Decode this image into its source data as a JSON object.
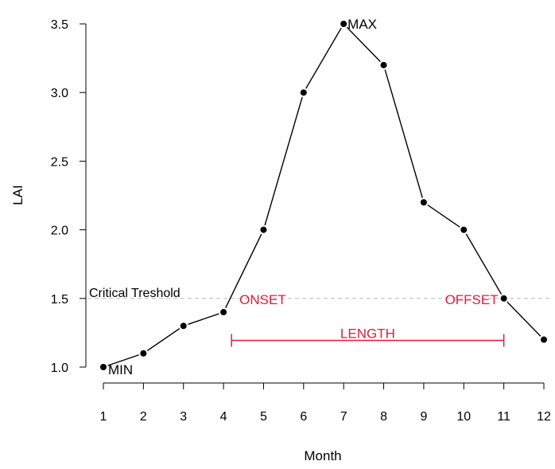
{
  "chart_data": {
    "type": "line",
    "xlabel": "Month",
    "ylabel": "LAI",
    "xlim": [
      1,
      12
    ],
    "ylim": [
      1.0,
      3.5
    ],
    "x_ticks": [
      1,
      2,
      3,
      4,
      5,
      6,
      7,
      8,
      9,
      10,
      11,
      12
    ],
    "y_ticks": [
      "1.0",
      "1.5",
      "2.0",
      "2.5",
      "3.0",
      "3.5"
    ],
    "grid": false,
    "legend": "none",
    "series": [
      {
        "x": [
          1,
          2,
          3,
          4,
          5,
          6,
          7,
          8,
          9,
          10,
          11,
          12
        ],
        "values": [
          1.0,
          1.1,
          1.3,
          1.4,
          2.0,
          3.0,
          3.5,
          3.2,
          2.2,
          2.0,
          1.5,
          1.2
        ],
        "color": "#000000"
      }
    ],
    "threshold": {
      "label": "Critical Treshold",
      "y": 1.5,
      "color": "#bbbbbb"
    },
    "annotations": [
      {
        "text": "MIN",
        "x": 1,
        "y": 1.0,
        "color": "#000000"
      },
      {
        "text": "MAX",
        "x": 7,
        "y": 3.5,
        "color": "#000000"
      },
      {
        "text": "ONSET",
        "x": 4.2,
        "y": 1.5,
        "color": "#e8193c"
      },
      {
        "text": "OFFSET",
        "x": 11,
        "y": 1.5,
        "color": "#e8193c"
      }
    ],
    "length_bar": {
      "label": "LENGTH",
      "x_start": 4.2,
      "x_end": 11,
      "y": 1.2,
      "color": "#e8193c"
    }
  }
}
